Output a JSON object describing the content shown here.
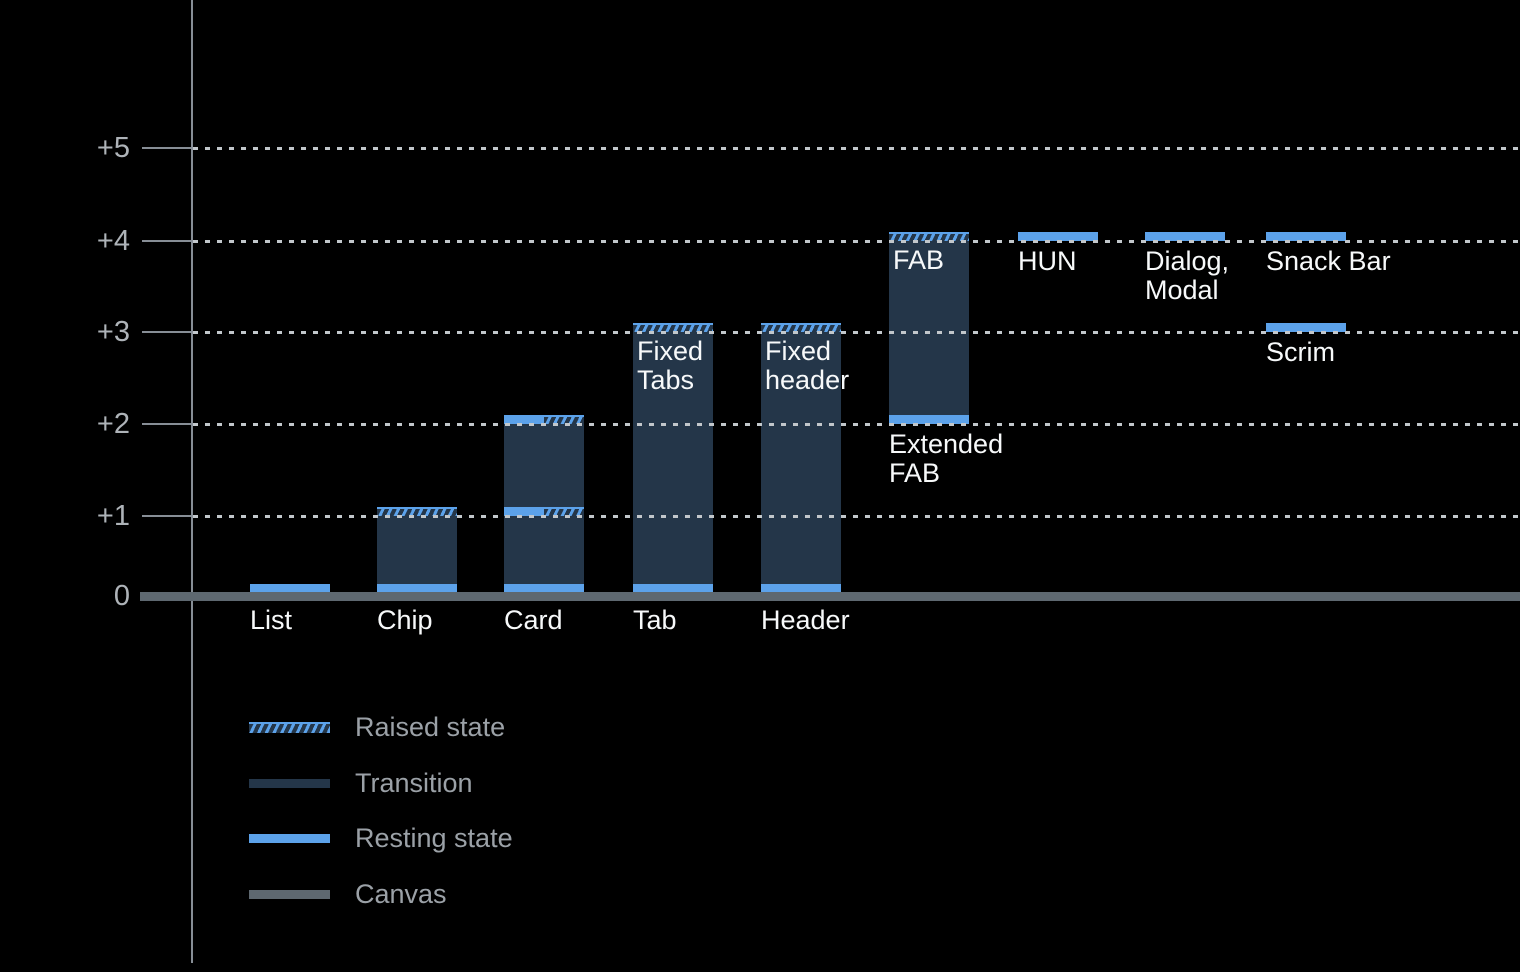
{
  "chart_data": {
    "type": "bar",
    "title": "",
    "y_axis": {
      "ticks": [
        {
          "label": "+5",
          "value": 5
        },
        {
          "label": "+4",
          "value": 4
        },
        {
          "label": "+3",
          "value": 3
        },
        {
          "label": "+2",
          "value": 2
        },
        {
          "label": "+1",
          "value": 1
        },
        {
          "label": "0",
          "value": 0
        }
      ],
      "ylim": [
        0,
        5.5
      ],
      "grid_style": "dotted",
      "baseline": "canvas"
    },
    "bars": [
      {
        "name": "list",
        "axis_label": "List",
        "segments": [
          {
            "kind": "resting",
            "from": 0,
            "to": 0.1
          }
        ]
      },
      {
        "name": "chip",
        "axis_label": "Chip",
        "segments": [
          {
            "kind": "resting",
            "from": 0,
            "to": 0.1
          },
          {
            "kind": "transition",
            "from": 0.1,
            "to": 1
          },
          {
            "kind": "raised",
            "from": 1,
            "to": 1.1
          }
        ]
      },
      {
        "name": "card",
        "axis_label": "Card",
        "segments": [
          {
            "kind": "resting",
            "from": 0,
            "to": 0.1
          },
          {
            "kind": "transition",
            "from": 0.1,
            "to": 1
          },
          {
            "kind": "resting-raised",
            "from": 1,
            "to": 1.1
          },
          {
            "kind": "transition",
            "from": 1.1,
            "to": 2
          },
          {
            "kind": "resting-raised",
            "from": 2,
            "to": 2.1
          }
        ]
      },
      {
        "name": "tab",
        "axis_label": "Tab",
        "inner_label_lines": [
          "Fixed",
          "Tabs"
        ],
        "segments": [
          {
            "kind": "resting",
            "from": 0,
            "to": 0.1
          },
          {
            "kind": "transition",
            "from": 0.1,
            "to": 3
          },
          {
            "kind": "raised",
            "from": 3,
            "to": 3.1
          }
        ]
      },
      {
        "name": "header",
        "axis_label": "Header",
        "inner_label_lines": [
          "Fixed",
          "header"
        ],
        "segments": [
          {
            "kind": "resting",
            "from": 0,
            "to": 0.1
          },
          {
            "kind": "transition",
            "from": 0.1,
            "to": 3
          },
          {
            "kind": "raised",
            "from": 3,
            "to": 3.1
          }
        ]
      },
      {
        "name": "extended-fab",
        "inner_label_lines": [
          "FAB"
        ],
        "below_label_lines": [
          "Extended",
          "FAB"
        ],
        "segments": [
          {
            "kind": "resting",
            "from": 2,
            "to": 2.1
          },
          {
            "kind": "transition",
            "from": 2.1,
            "to": 4
          },
          {
            "kind": "raised",
            "from": 4,
            "to": 4.1
          }
        ]
      },
      {
        "name": "hun",
        "below_label_lines": [
          "HUN"
        ],
        "segments": [
          {
            "kind": "resting",
            "from": 4,
            "to": 4.1
          }
        ]
      },
      {
        "name": "dialog-modal",
        "below_label_lines": [
          "Dialog,",
          "Modal"
        ],
        "segments": [
          {
            "kind": "resting",
            "from": 4,
            "to": 4.1
          }
        ]
      },
      {
        "name": "snack-bar",
        "below_label_lines": [
          "Snack Bar"
        ],
        "segments": [
          {
            "kind": "resting",
            "from": 4,
            "to": 4.1
          }
        ]
      },
      {
        "name": "scrim",
        "below_label_lines": [
          "Scrim"
        ],
        "segments": [
          {
            "kind": "resting",
            "from": 3,
            "to": 3.1
          }
        ]
      }
    ],
    "legend": [
      {
        "swatch": "raised",
        "label": "Raised state"
      },
      {
        "swatch": "transition",
        "label": "Transition"
      },
      {
        "swatch": "resting",
        "label": "Resting state"
      },
      {
        "swatch": "canvas",
        "label": "Canvas"
      }
    ],
    "legend_position": "bottom-left"
  },
  "colors": {
    "background": "#000000",
    "resting": "#5CA2EA",
    "transition": "#243649",
    "canvas": "#5E6870",
    "axis": "#878E96",
    "grid_dots": "#C2C7CB",
    "tick_text": "#AEB3B8",
    "bar_text": "#F7F9FA",
    "legend_text": "#9BA1A7"
  }
}
